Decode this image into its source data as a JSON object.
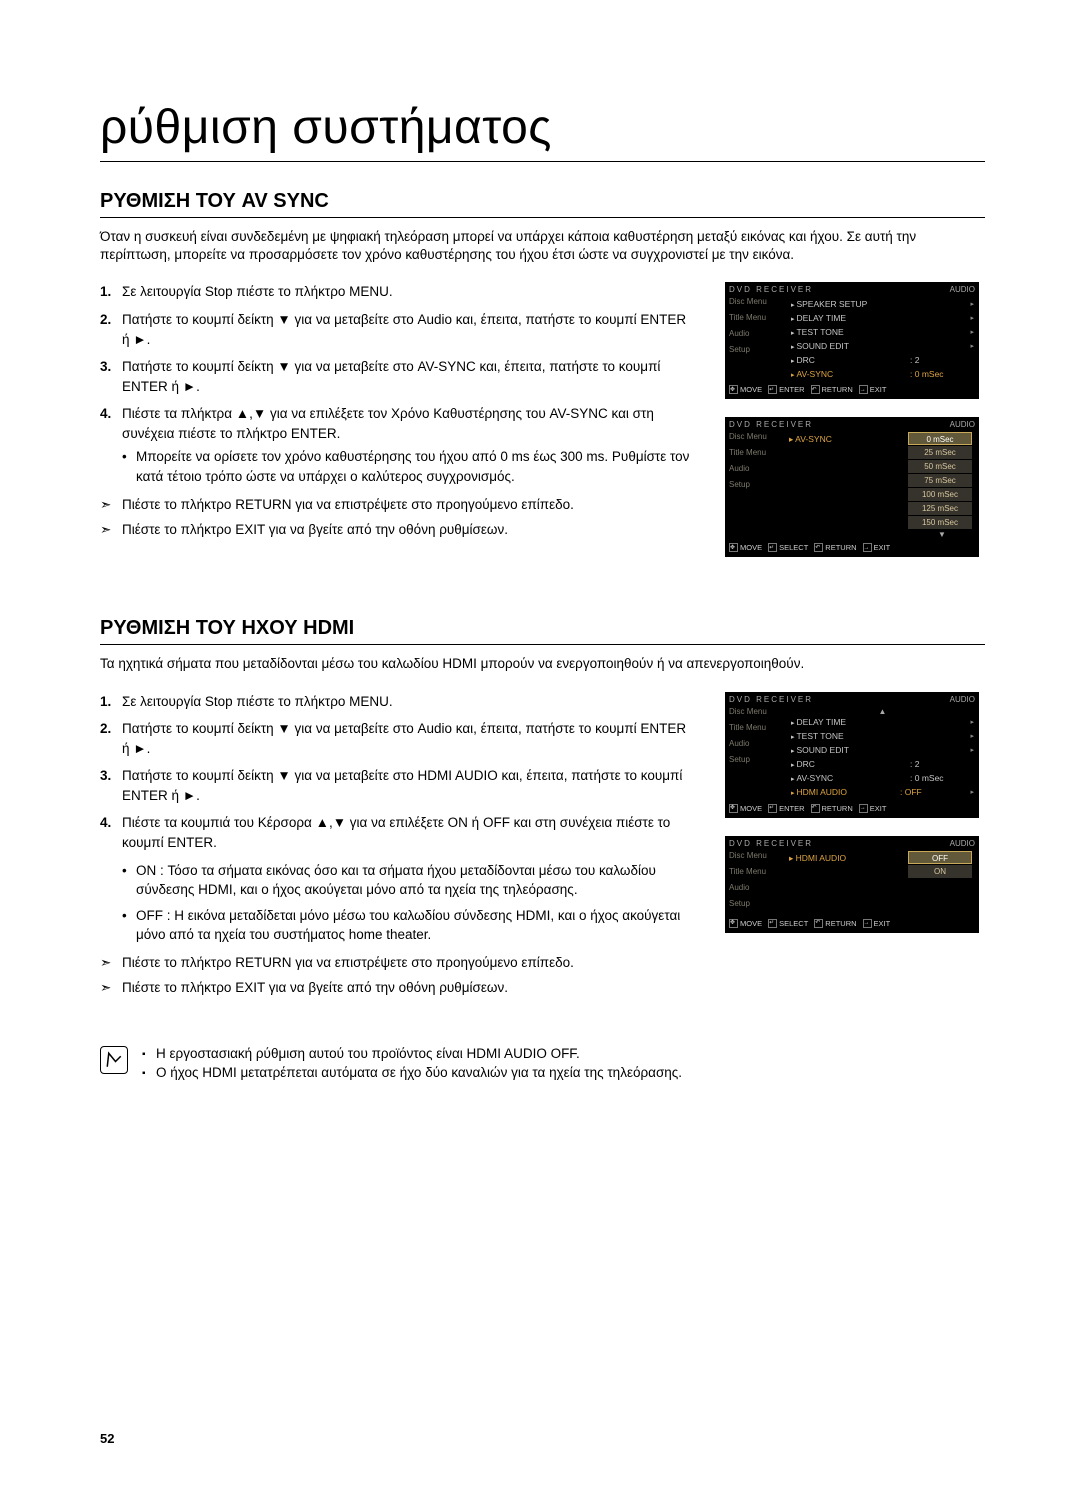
{
  "page_title": "ρύθμιση συστήματος",
  "page_number": "52",
  "section1": {
    "heading": "ΡΥΘΜΙΣΗ ΤΟΥ AV SYNC",
    "intro": "Όταν η συσκευή είναι συνδεδεμένη με ψηφιακή τηλεόραση μπορεί να υπάρχει κάποια καθυστέρηση μεταξύ εικόνας και ήχου. Σε αυτή την περίπτωση, μπορείτε να προσαρμόσετε  τον χρόνο καθυστέρησης του ήχου έτσι ώστε να συγχρονιστεί με την εικόνα.",
    "step1": "Σε λειτουργία Stop πιέστε το πλήκτρο MENU.",
    "step2": "Πατήστε το κουμπί δείκτη ▼ για να μεταβείτε στο Audio και, έπειτα, πατήστε το κουμπί ENTER ή ►.",
    "step3": "Πατήστε το κουμπί δείκτη ▼ για να μεταβείτε στο AV-SYNC και, έπειτα, πατήστε το κουμπί ENTER ή ►.",
    "step4": "Πιέστε τα πλήκτρα ▲,▼ για να επιλέξετε τον Χρόνο Καθυστέρησης του AV-SYNC και στη συνέχεια πιέστε το πλήκτρο ENTER.",
    "step4_sub1": "Μπορείτε να ορίσετε τον χρόνο καθυστέρησης του ήχου από 0 ms έως 300 ms. Ρυθμίστε τον κατά τέτοιο τρόπο ώστε να υπάρχει ο καλύτερος συγχρονισμός.",
    "arrow1": "Πιέστε το πλήκτρο RETURN για να επιστρέψετε στο προηγούμενο επίπεδο.",
    "arrow2": "Πιέστε το πλήκτρο EXIT για να βγείτε από την οθόνη ρυθμίσεων."
  },
  "section2": {
    "heading": "ΡΥΘΜΙΣΗ ΤΟΥ ΗΧΟΥ HDMI",
    "intro": "Τα ηχητικά σήματα που μεταδίδονται μέσω του καλωδίου HDMI μπορούν να ενεργοποιηθούν ή να απενεργοποιηθούν.",
    "step1": "Σε λειτουργία Stop πιέστε το πλήκτρο MENU.",
    "step2": "Πατήστε το κουμπί δείκτη ▼ για να μεταβείτε στο Audio και, έπειτα, πατήστε το κουμπί ENTER ή ►.",
    "step3": "Πατήστε το κουμπί δείκτη ▼ για να μεταβείτε στο HDMI AUDIO και, έπειτα, πατήστε το κουμπί ENTER ή ►.",
    "step4": "Πιέστε τα κουμπιά του Κέρσορα ▲,▼ για να επιλέξετε ON ή OFF και στη συνέχεια πιέστε το κουμπί ENTER.",
    "opt_on": "ON :  Τόσο τα σήματα εικόνας όσο και τα σήματα ήχου μεταδίδονται μέσω του καλωδίου σύνδεσης HDMI, και ο ήχος ακούγεται μόνο από τα ηχεία της τηλεόρασης.",
    "opt_off": "OFF :  Η εικόνα μεταδίδεται μόνο μέσω του καλωδίου σύνδεσης HDMI, και ο ήχος ακούγεται μόνο από τα ηχεία του συστήματος home theater.",
    "arrow1": "Πιέστε το πλήκτρο RETURN για να επιστρέψετε στο προηγούμενο επίπεδο.",
    "arrow2": "Πιέστε το πλήκτρο EXIT για να βγείτε από την οθόνη ρυθμίσεων.",
    "note1": "Η εργοστασιακή ρύθμιση αυτού του προϊόντος είναι HDMI AUDIO OFF.",
    "note2": "Ο ήχος HDMI μετατρέπεται αυτόματα σε ήχο δύο καναλιών για τα ηχεία της τηλεόρασης."
  },
  "osd": {
    "top_left": "DVD RECEIVER",
    "top_right": "AUDIO",
    "side": [
      "Disc Menu",
      "Title Menu",
      "Audio",
      "Setup"
    ],
    "foot_move": "MOVE",
    "foot_enter": "ENTER",
    "foot_select": "SELECT",
    "foot_return": "RETURN",
    "foot_exit": "EXIT",
    "fig1_rows": [
      {
        "lbl": "SPEAKER SETUP",
        "val": "",
        "hl": false,
        "arr": "▸"
      },
      {
        "lbl": "DELAY TIME",
        "val": "",
        "hl": false,
        "arr": "▸"
      },
      {
        "lbl": "TEST TONE",
        "val": "",
        "hl": false,
        "arr": "▸"
      },
      {
        "lbl": "SOUND EDIT",
        "val": "",
        "hl": false,
        "arr": "▸"
      },
      {
        "lbl": "DRC",
        "val": "2",
        "hl": false,
        "arr": ""
      },
      {
        "lbl": "AV-SYNC",
        "val": "0 mSec",
        "hl": true,
        "arr": ""
      }
    ],
    "fig2_label": "AV-SYNC",
    "fig2_opts": [
      "0 mSec",
      "25 mSec",
      "50 mSec",
      "75 mSec",
      "100 mSec",
      "125 mSec",
      "150 mSec"
    ],
    "fig3_rows": [
      {
        "lbl": "DELAY TIME",
        "val": "",
        "hl": false,
        "arr": "▸"
      },
      {
        "lbl": "TEST TONE",
        "val": "",
        "hl": false,
        "arr": "▸"
      },
      {
        "lbl": "SOUND EDIT",
        "val": "",
        "hl": false,
        "arr": "▸"
      },
      {
        "lbl": "DRC",
        "val": "2",
        "hl": false,
        "arr": ""
      },
      {
        "lbl": "AV-SYNC",
        "val": "0 mSec",
        "hl": false,
        "arr": ""
      },
      {
        "lbl": "HDMI AUDIO",
        "val": "OFF",
        "hl": true,
        "arr": "▸"
      }
    ],
    "fig4_label": "HDMI AUDIO",
    "fig4_opts": [
      "OFF",
      "ON"
    ]
  }
}
